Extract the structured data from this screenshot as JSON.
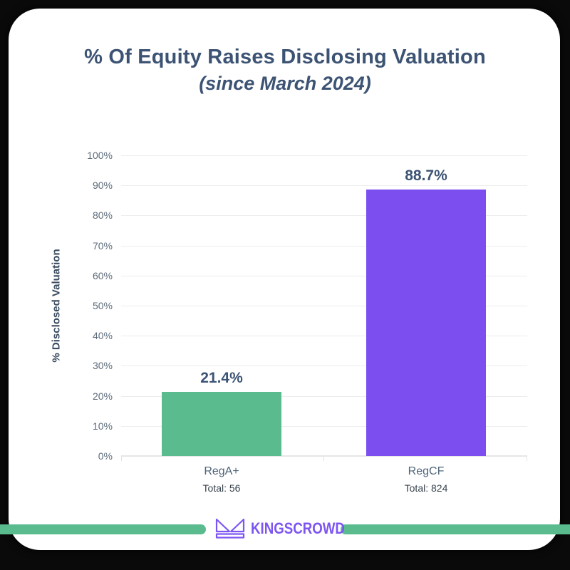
{
  "title": {
    "line1": "% Of Equity Raises Disclosing Valuation",
    "line2": "(since March 2024)"
  },
  "chart_data": {
    "type": "bar",
    "title": "% Of Equity Raises Disclosing Valuation (since March 2024)",
    "xlabel": "",
    "ylabel": "% Disclosed Valuation",
    "ylim": [
      0,
      100
    ],
    "yticks": [
      "100%",
      "90%",
      "80%",
      "70%",
      "60%",
      "50%",
      "40%",
      "30%",
      "20%",
      "10%",
      "0%"
    ],
    "grid": true,
    "legend": false,
    "categories": [
      "RegA+",
      "RegCF"
    ],
    "values": [
      21.4,
      88.7
    ],
    "value_labels": [
      "21.4%",
      "88.7%"
    ],
    "totals": [
      "Total: 56",
      "Total: 824"
    ],
    "bar_colors": [
      "#5abc8e",
      "#7c4ef0"
    ]
  },
  "footer": {
    "brand": "KINGSCROWD",
    "brand_color": "#7d55f2",
    "divider_color": "#5abc8e",
    "crown_icon": "crown-outline"
  },
  "colors": {
    "frame_bg": "#0a0a0a",
    "card_bg": "#ffffff",
    "title_text": "#3c5374",
    "tick_text": "#5c6b7b",
    "category_text": "#4e6479",
    "total_text": "#38424c",
    "gridline": "#ededed",
    "axis_line": "#e3e6e9"
  }
}
